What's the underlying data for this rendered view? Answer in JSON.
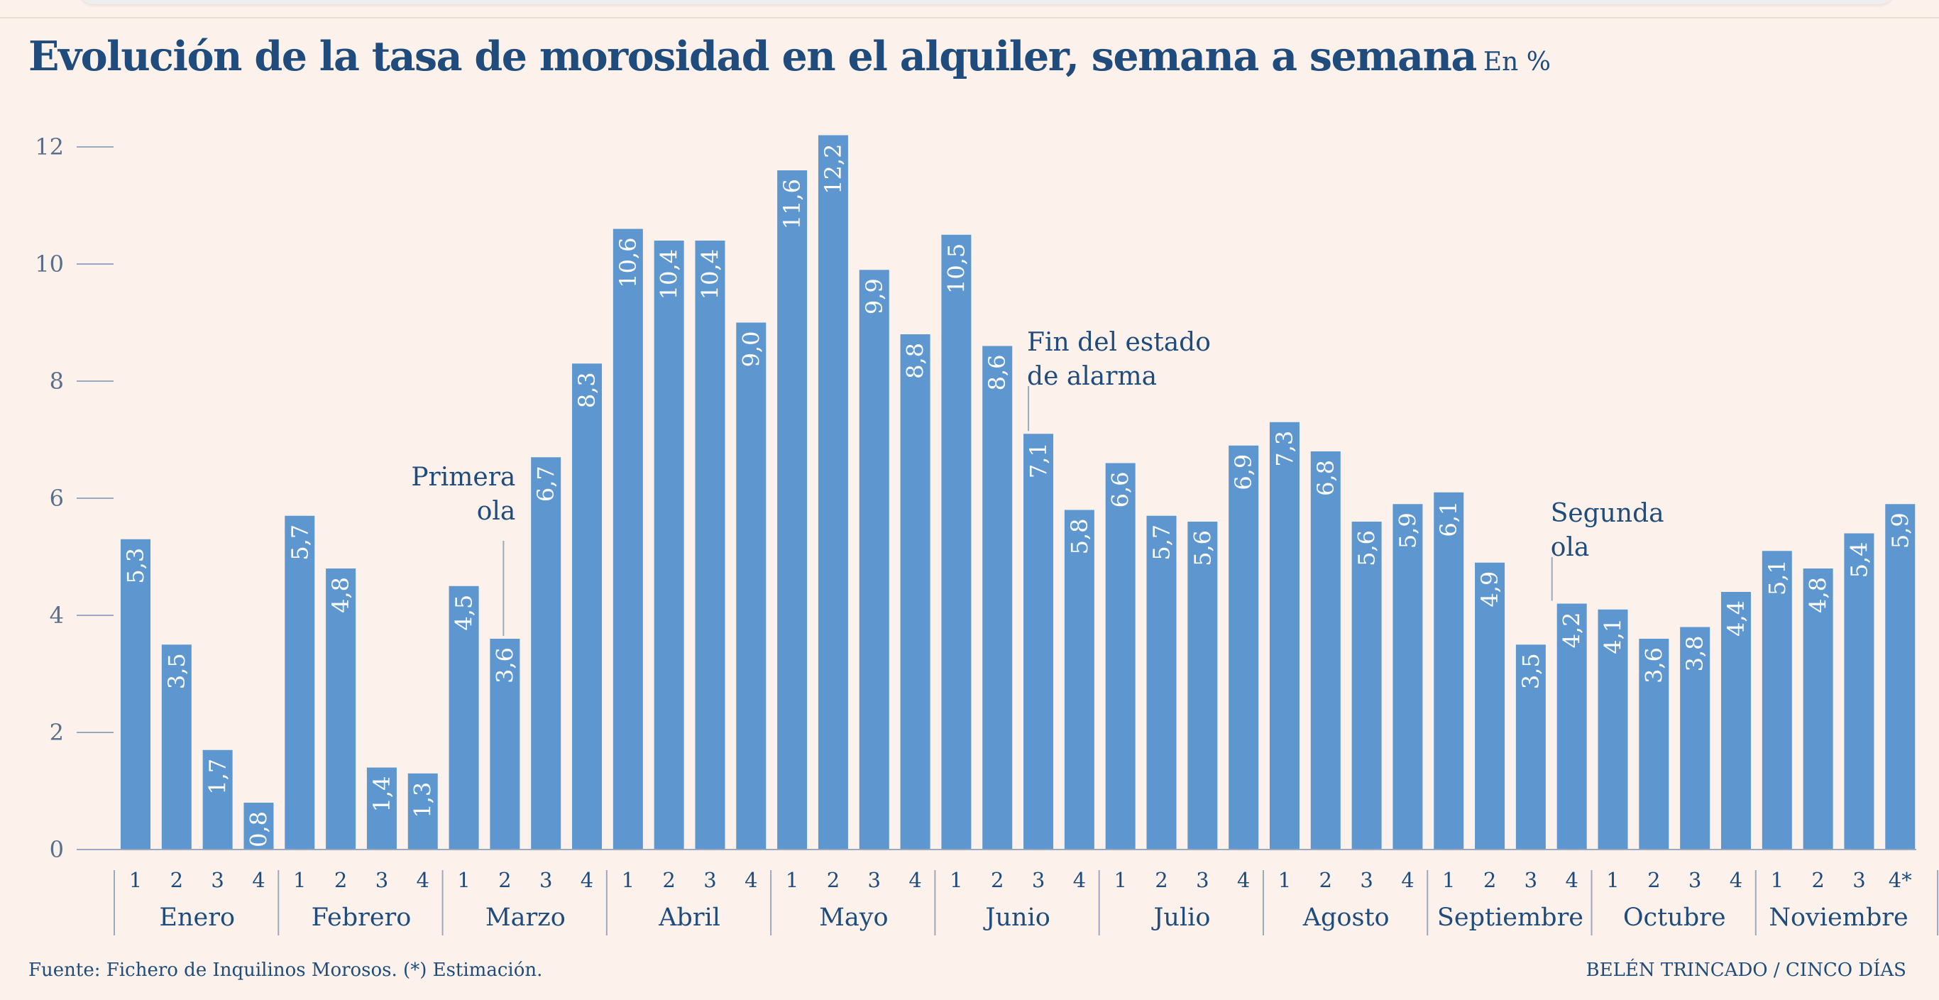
{
  "title": "Evolución de la tasa de morosidad en el alquiler, semana a semana",
  "unit": "En %",
  "source": "Fuente: Fichero de Inquilinos Morosos. (*) Estimación.",
  "credit": "BELÉN TRINCADO / CINCO DÍAS",
  "colors": {
    "bar": "#5e97d0",
    "text": "#1f4c7c",
    "background": "#fcf2eb",
    "axis": "#9aa9c0"
  },
  "chart_data": {
    "type": "bar",
    "ylim": [
      0,
      12
    ],
    "yticks": [
      0,
      2,
      4,
      6,
      8,
      10,
      12
    ],
    "ytick_labels": [
      "0",
      "2",
      "4",
      "6",
      "8",
      "10",
      "12"
    ],
    "grid": false,
    "months": [
      {
        "name": "Enero",
        "weeks": [
          "1",
          "2",
          "3",
          "4"
        ]
      },
      {
        "name": "Febrero",
        "weeks": [
          "1",
          "2",
          "3",
          "4"
        ]
      },
      {
        "name": "Marzo",
        "weeks": [
          "1",
          "2",
          "3",
          "4"
        ]
      },
      {
        "name": "Abril",
        "weeks": [
          "1",
          "2",
          "3",
          "4"
        ]
      },
      {
        "name": "Mayo",
        "weeks": [
          "1",
          "2",
          "3",
          "4"
        ]
      },
      {
        "name": "Junio",
        "weeks": [
          "1",
          "2",
          "3",
          "4"
        ]
      },
      {
        "name": "Julio",
        "weeks": [
          "1",
          "2",
          "3",
          "4"
        ]
      },
      {
        "name": "Agosto",
        "weeks": [
          "1",
          "2",
          "3",
          "4"
        ]
      },
      {
        "name": "Septiembre",
        "weeks": [
          "1",
          "2",
          "3",
          "4"
        ]
      },
      {
        "name": "Octubre",
        "weeks": [
          "1",
          "2",
          "3",
          "4"
        ]
      },
      {
        "name": "Noviembre",
        "weeks": [
          "1",
          "2",
          "3",
          "4*"
        ]
      }
    ],
    "values": [
      5.3,
      3.5,
      1.7,
      0.8,
      5.7,
      4.8,
      1.4,
      1.3,
      4.5,
      3.6,
      6.7,
      8.3,
      10.6,
      10.4,
      10.4,
      9.0,
      11.6,
      12.2,
      9.9,
      8.8,
      10.5,
      8.6,
      7.1,
      5.8,
      6.6,
      5.7,
      5.6,
      6.9,
      7.3,
      6.8,
      5.6,
      5.9,
      6.1,
      4.9,
      3.5,
      4.2,
      4.1,
      3.6,
      3.8,
      4.4,
      5.1,
      4.8,
      5.4,
      5.9
    ],
    "data_labels": [
      "5,3",
      "3,5",
      "1,7",
      "0,8",
      "5,7",
      "4,8",
      "1,4",
      "1,3",
      "4,5",
      "3,6",
      "6,7",
      "8,3",
      "10,6",
      "10,4",
      "10,4",
      "9,0",
      "11,6",
      "12,2",
      "9,9",
      "8,8",
      "10,5",
      "8,6",
      "7,1",
      "5,8",
      "6,6",
      "5,7",
      "5,6",
      "6,9",
      "7,3",
      "6,8",
      "5,6",
      "5,9",
      "6,1",
      "4,9",
      "3,5",
      "4,2",
      "4,1",
      "3,6",
      "3,8",
      "4,4",
      "5,1",
      "4,8",
      "5,4",
      "5,9"
    ],
    "annotations": [
      {
        "bar_index": 9,
        "lines": [
          "Primera",
          "ola"
        ],
        "align": "right"
      },
      {
        "bar_index": 22,
        "lines": [
          "Fin del estado",
          "de alarma"
        ],
        "align": "left"
      },
      {
        "bar_index": 35,
        "lines": [
          "Segunda",
          "ola"
        ],
        "align": "left"
      }
    ]
  }
}
